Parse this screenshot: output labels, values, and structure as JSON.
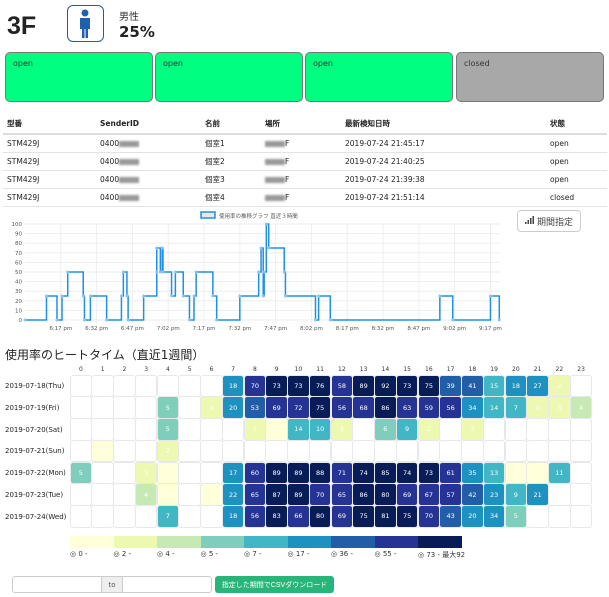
{
  "header": {
    "floor": "3F",
    "gender": "男性",
    "usage": "25%"
  },
  "stalls": [
    {
      "status": "open",
      "color": "#00ff80"
    },
    {
      "status": "open",
      "color": "#00ff80"
    },
    {
      "status": "open",
      "color": "#00ff80"
    },
    {
      "status": "closed",
      "color": "#a8a8a8"
    }
  ],
  "table": {
    "headers": [
      "型番",
      "SenderID",
      "名前",
      "場所",
      "最新検知日時",
      "状態"
    ],
    "rows": [
      {
        "model": "STM429J",
        "sender": "0400",
        "name": "個室1",
        "place": "F",
        "time": "2019-07-24 21:45:17",
        "state": "open"
      },
      {
        "model": "STM429J",
        "sender": "0400",
        "name": "個室2",
        "place": "F",
        "time": "2019-07-24 21:40:25",
        "state": "open"
      },
      {
        "model": "STM429J",
        "sender": "0400",
        "name": "個室3",
        "place": "F",
        "time": "2019-07-24 21:39:38",
        "state": "open"
      },
      {
        "model": "STM429J",
        "sender": "0400",
        "name": "個室4",
        "place": "F",
        "time": "2019-07-24 21:51:14",
        "state": "closed"
      }
    ]
  },
  "period_button": "期間指定",
  "chart_data": {
    "type": "line",
    "legend": "使用率の推移グラフ 直近３時間",
    "ylim": [
      0,
      100
    ],
    "yticks": [
      0,
      10,
      20,
      30,
      40,
      50,
      60,
      70,
      80,
      90,
      100
    ],
    "x_unit": "minutes after 6:00 pm",
    "xlim": [
      2,
      201
    ],
    "xticks": [
      {
        "m": 17,
        "label": "6:17 pm"
      },
      {
        "m": 32,
        "label": "6:32 pm"
      },
      {
        "m": 47,
        "label": "6:47 pm"
      },
      {
        "m": 62,
        "label": "7:02 pm"
      },
      {
        "m": 77,
        "label": "7:17 pm"
      },
      {
        "m": 92,
        "label": "7:32 pm"
      },
      {
        "m": 107,
        "label": "7:47 pm"
      },
      {
        "m": 122,
        "label": "8:02 pm"
      },
      {
        "m": 137,
        "label": "8:17 pm"
      },
      {
        "m": 152,
        "label": "8:32 pm"
      },
      {
        "m": 167,
        "label": "8:47 pm"
      },
      {
        "m": 182,
        "label": "9:02 pm"
      },
      {
        "m": 197,
        "label": "9:17 pm"
      }
    ],
    "points": [
      [
        2,
        0
      ],
      [
        11,
        25
      ],
      [
        15.4,
        0
      ],
      [
        17.5,
        25
      ],
      [
        19.9,
        50
      ],
      [
        26.4,
        25
      ],
      [
        26.9,
        0
      ],
      [
        29.4,
        25
      ],
      [
        36.2,
        0
      ],
      [
        42.4,
        25
      ],
      [
        43.2,
        50
      ],
      [
        44.7,
        25
      ],
      [
        45.2,
        0
      ],
      [
        51.7,
        25
      ],
      [
        57.2,
        50
      ],
      [
        57.2,
        75
      ],
      [
        58.7,
        50
      ],
      [
        59.5,
        75
      ],
      [
        59.8,
        50
      ],
      [
        63.4,
        25
      ],
      [
        65,
        50
      ],
      [
        68.3,
        25
      ],
      [
        70.9,
        0
      ],
      [
        72.8,
        25
      ],
      [
        73.7,
        50
      ],
      [
        80.7,
        25
      ],
      [
        82.3,
        0
      ],
      [
        92,
        25
      ],
      [
        99.9,
        50
      ],
      [
        100.9,
        75
      ],
      [
        101.8,
        25
      ],
      [
        102.2,
        50
      ],
      [
        103.1,
        100
      ],
      [
        104.1,
        75
      ],
      [
        110.6,
        50
      ],
      [
        111.1,
        25
      ],
      [
        123.7,
        0
      ],
      [
        125,
        25
      ],
      [
        129.9,
        0
      ],
      [
        175.8,
        25
      ],
      [
        181.2,
        0
      ],
      [
        197,
        25
      ],
      [
        200.7,
        0
      ]
    ],
    "color": "#1e90e6"
  },
  "heatmap": {
    "title": "使用率のヒートタイム（直近1週間）",
    "hours": [
      "0",
      "1",
      "2",
      "3",
      "4",
      "5",
      "6",
      "7",
      "8",
      "9",
      "10",
      "11",
      "12",
      "13",
      "14",
      "15",
      "16",
      "17",
      "18",
      "19",
      "20",
      "21",
      "22",
      "23"
    ],
    "rows": [
      {
        "date": "2019-07-18(Thu)",
        "values": [
          null,
          null,
          null,
          null,
          null,
          null,
          null,
          18,
          70,
          73,
          73,
          76,
          58,
          89,
          92,
          73,
          75,
          39,
          41,
          15,
          18,
          27,
          2,
          null
        ]
      },
      {
        "date": "2019-07-19(Fri)",
        "values": [
          null,
          null,
          null,
          null,
          5,
          null,
          3,
          20,
          53,
          69,
          72,
          75,
          56,
          68,
          86,
          63,
          59,
          56,
          34,
          14,
          7,
          3,
          3,
          4
        ]
      },
      {
        "date": "2019-07-20(Sat)",
        "values": [
          null,
          null,
          null,
          null,
          5,
          null,
          null,
          null,
          3,
          1,
          14,
          10,
          3,
          null,
          6,
          9,
          2,
          null,
          3,
          null,
          null,
          null,
          null,
          null
        ]
      },
      {
        "date": "2019-07-21(Sun)",
        "values": [
          null,
          1,
          null,
          null,
          2,
          null,
          null,
          null,
          null,
          null,
          null,
          null,
          null,
          null,
          null,
          null,
          null,
          null,
          null,
          null,
          null,
          null,
          null,
          null
        ]
      },
      {
        "date": "2019-07-22(Mon)",
        "values": [
          5,
          null,
          null,
          3,
          1,
          null,
          null,
          17,
          60,
          89,
          89,
          88,
          71,
          74,
          85,
          74,
          73,
          61,
          35,
          13,
          1,
          1,
          11,
          null
        ]
      },
      {
        "date": "2019-07-23(Tue)",
        "values": [
          null,
          null,
          null,
          4,
          1,
          null,
          1,
          22,
          65,
          87,
          89,
          70,
          65,
          86,
          80,
          69,
          67,
          57,
          42,
          23,
          9,
          21,
          null,
          null
        ]
      },
      {
        "date": "2019-07-24(Wed)",
        "values": [
          null,
          null,
          null,
          null,
          7,
          null,
          null,
          18,
          56,
          83,
          66,
          80,
          69,
          75,
          81,
          75,
          70,
          43,
          20,
          34,
          5,
          null,
          null,
          null
        ]
      }
    ],
    "legend": [
      {
        "min": 0,
        "label": "0 -",
        "color": "#ffffd9"
      },
      {
        "min": 2,
        "label": "2 -",
        "color": "#edf8b1"
      },
      {
        "min": 4,
        "label": "4 -",
        "color": "#c7e9b4"
      },
      {
        "min": 5,
        "label": "5 -",
        "color": "#7fcdbb"
      },
      {
        "min": 7,
        "label": "7 -",
        "color": "#41b6c4"
      },
      {
        "min": 17,
        "label": "17 -",
        "color": "#1d91c0"
      },
      {
        "min": 36,
        "label": "36 -",
        "color": "#225ea8"
      },
      {
        "min": 55,
        "label": "55 -",
        "color": "#253494"
      },
      {
        "min": 73,
        "label": "73 - 最大92",
        "color": "#081d58"
      }
    ]
  },
  "export": {
    "from": "",
    "to_label": "to",
    "to": "",
    "button": "指定した期間でCSVダウンロード"
  }
}
